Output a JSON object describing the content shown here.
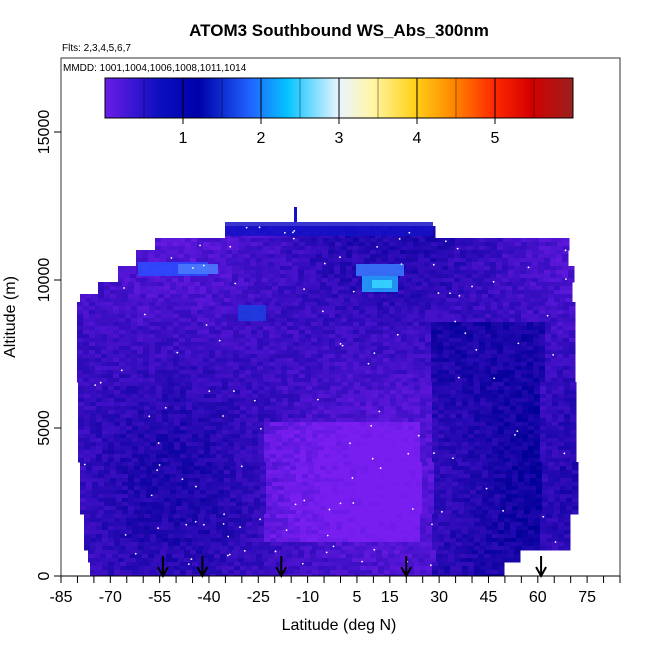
{
  "chart_data": {
    "type": "heatmap",
    "title": "ATOM3 Southbound WS_Abs_300nm",
    "flights_label": "Flts: 2,3,4,5,6,7",
    "mmdd_label": "MMDD: 1001,1004,1006,1008,1011,1014",
    "xlabel": "Latitude (deg N)",
    "ylabel": "Altitude (m)",
    "xlim": [
      -85,
      85
    ],
    "ylim": [
      0,
      17500
    ],
    "x_ticks": [
      -85,
      -70,
      -55,
      -40,
      -25,
      -10,
      5,
      15,
      30,
      45,
      60,
      75
    ],
    "x_minor_step": 5,
    "y_ticks": [
      0,
      5000,
      10000,
      15000
    ],
    "colorbar": {
      "range": [
        0,
        6
      ],
      "ticks": [
        1,
        2,
        3,
        4,
        5
      ],
      "colors": [
        "#6a1de6",
        "#0a0fbf",
        "#0000a8",
        "#1f63ff",
        "#05c3ff",
        "#eaf4ff",
        "#fff6a8",
        "#ffd21a",
        "#ff8c00",
        "#ff2a00",
        "#d40000",
        "#9a1f1f"
      ]
    },
    "arrow_latitudes": [
      -54,
      -42,
      -18,
      20,
      61
    ],
    "grid": false,
    "legend": "colorbar-top"
  }
}
